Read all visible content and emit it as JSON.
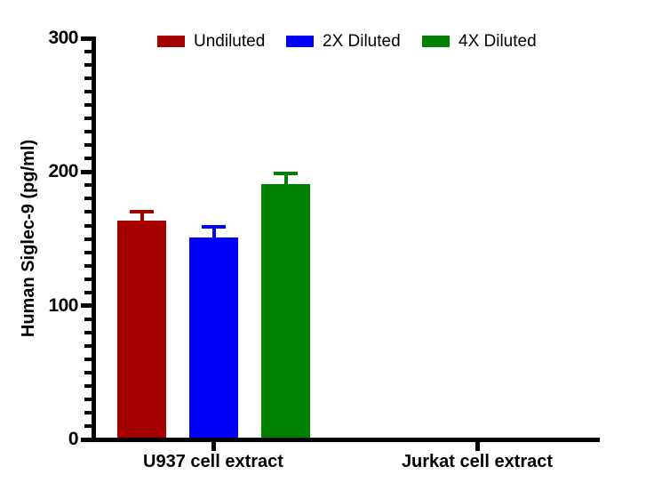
{
  "chart_data": {
    "type": "bar",
    "title": "",
    "xlabel": "",
    "ylabel": "Human Siglec-9 (pg/ml)",
    "ylim": [
      0,
      300
    ],
    "ytick_major": [
      0,
      100,
      200,
      300
    ],
    "ytick_minor_step": 10,
    "grid": false,
    "legend_position": "top",
    "error_type": "upper-sd",
    "axis_color": "#000000",
    "background_color": "#ffffff",
    "categories": [
      "U937 cell extract",
      "Jurkat cell extract"
    ],
    "series": [
      {
        "name": "Undiluted",
        "color": "#a40000",
        "values": [
          164,
          0
        ],
        "errors": [
          6,
          0
        ]
      },
      {
        "name": "2X Diluted",
        "color": "#0000fe",
        "values": [
          151,
          0
        ],
        "errors": [
          8,
          0
        ]
      },
      {
        "name": "4X Diluted",
        "color": "#008000",
        "values": [
          191,
          0
        ],
        "errors": [
          8,
          0
        ]
      }
    ]
  }
}
